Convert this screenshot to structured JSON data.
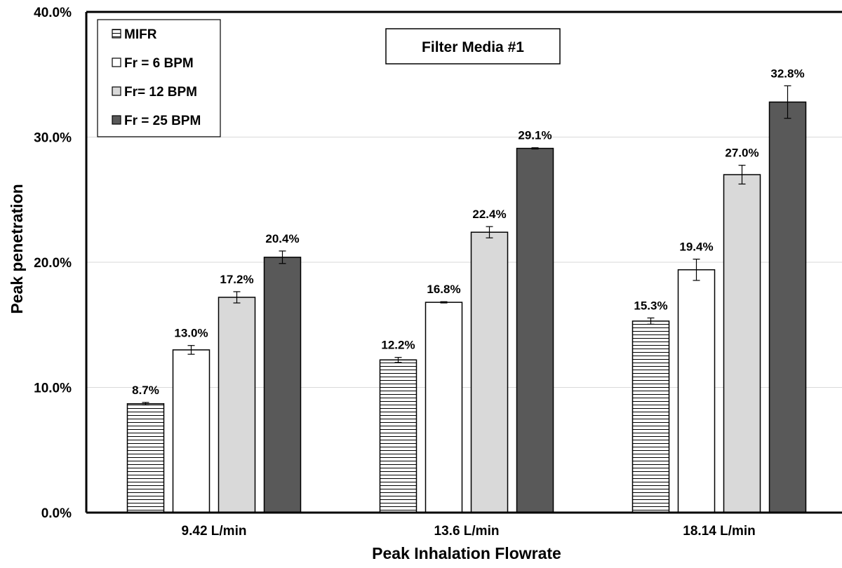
{
  "chart_data": {
    "type": "bar",
    "title": "Filter Media #1",
    "xlabel": "Peak Inhalation Flowrate",
    "ylabel": "Peak penetration",
    "categories": [
      "9.42 L/min",
      "13.6 L/min",
      "18.14 L/min"
    ],
    "ylim": [
      0,
      40
    ],
    "yticks": [
      0,
      10,
      20,
      30,
      40
    ],
    "ytick_labels": [
      "0.0%",
      "10.0%",
      "20.0%",
      "30.0%",
      "40.0%"
    ],
    "grid": true,
    "legend_position": "top-left",
    "series": [
      {
        "name": "MIFR",
        "pattern": "horizontal-stripes",
        "values": [
          8.7,
          12.2,
          15.3
        ],
        "labels": [
          "8.7%",
          "12.2%",
          "15.3%"
        ],
        "errors": [
          0.1,
          0.2,
          0.25
        ]
      },
      {
        "name": "Fr = 6 BPM",
        "pattern": "white",
        "values": [
          13.0,
          16.8,
          19.4
        ],
        "labels": [
          "13.0%",
          "16.8%",
          "19.4%"
        ],
        "errors": [
          0.35,
          0.05,
          0.85
        ]
      },
      {
        "name": "Fr= 12 BPM",
        "pattern": "light-gray",
        "values": [
          17.2,
          22.4,
          27.0
        ],
        "labels": [
          "17.2%",
          "22.4%",
          "27.0%"
        ],
        "errors": [
          0.45,
          0.45,
          0.75
        ]
      },
      {
        "name": "Fr = 25 BPM",
        "pattern": "dark-gray",
        "values": [
          20.4,
          29.1,
          32.8
        ],
        "labels": [
          "20.4%",
          "29.1%",
          "32.8%"
        ],
        "errors": [
          0.5,
          0.05,
          1.3
        ]
      }
    ],
    "colors": {
      "light_gray": "#d9d9d9",
      "dark_gray": "#595959",
      "stroke": "#000000",
      "grid": "#d9d9d9"
    }
  }
}
